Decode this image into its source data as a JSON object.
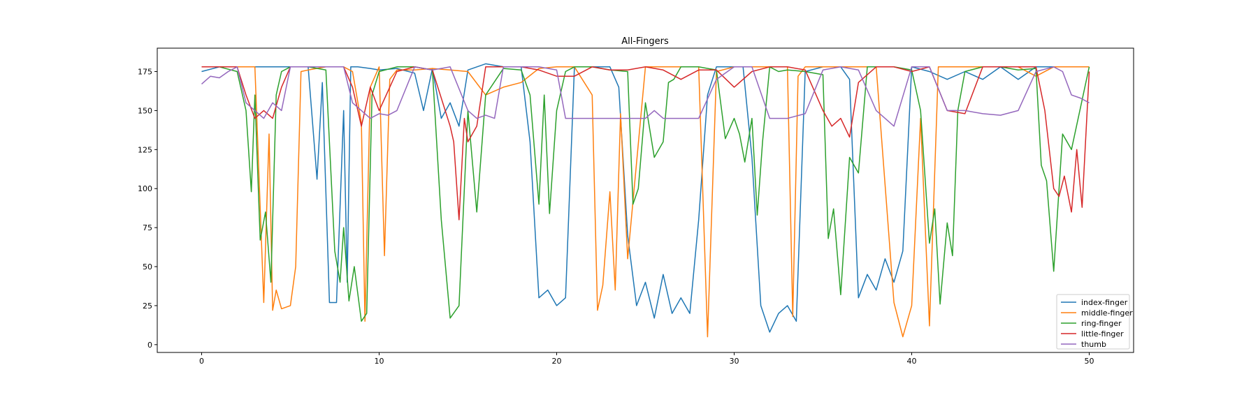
{
  "chart_data": {
    "type": "line",
    "title": "All-Fingers",
    "xlabel": "",
    "ylabel": "",
    "xlim": [
      -2.5,
      52.5
    ],
    "ylim": [
      -5,
      190
    ],
    "x_ticks": [
      0,
      10,
      20,
      30,
      40,
      50
    ],
    "y_ticks": [
      0,
      25,
      50,
      75,
      100,
      125,
      150,
      175
    ],
    "grid": false,
    "legend_position": "lower-right",
    "series": [
      {
        "name": "index-finger",
        "color": "#1f77b4",
        "x": [
          0,
          1,
          2,
          3,
          4,
          5,
          6,
          6.5,
          6.8,
          7.2,
          7.6,
          8,
          8.2,
          8.4,
          8.8,
          9.5,
          10,
          11,
          12,
          12.5,
          13,
          13.5,
          14,
          14.5,
          15,
          16,
          17,
          18,
          18.5,
          19,
          19.5,
          20,
          20.5,
          21,
          22,
          23,
          23.5,
          24,
          24.5,
          25,
          25.5,
          26,
          26.5,
          27,
          27.5,
          28,
          28.5,
          29,
          30,
          30.5,
          31,
          31.5,
          32,
          32.5,
          33,
          33.5,
          34,
          35,
          36,
          36.5,
          37,
          37.5,
          38,
          38.5,
          39,
          39.5,
          40,
          41,
          42,
          43,
          44,
          45,
          46,
          47,
          48,
          49,
          50
        ],
        "y": [
          175,
          178,
          178,
          178,
          178,
          178,
          178,
          106,
          168,
          27,
          27,
          150,
          40,
          178,
          178,
          177,
          176,
          177,
          174,
          150,
          177,
          145,
          155,
          140,
          176,
          180,
          178,
          178,
          130,
          30,
          35,
          25,
          30,
          178,
          178,
          178,
          165,
          70,
          25,
          40,
          17,
          45,
          20,
          30,
          20,
          80,
          160,
          178,
          178,
          178,
          120,
          25,
          8,
          20,
          25,
          15,
          175,
          178,
          178,
          170,
          30,
          45,
          35,
          55,
          40,
          60,
          178,
          175,
          170,
          175,
          170,
          178,
          170,
          178,
          178,
          178,
          178
        ]
      },
      {
        "name": "middle-finger",
        "color": "#ff7f0e",
        "x": [
          0,
          1,
          2,
          3,
          3.5,
          3.8,
          4,
          4.2,
          4.5,
          5,
          5.3,
          5.6,
          6,
          7,
          8,
          8.5,
          9,
          9.2,
          9.5,
          10,
          10.3,
          10.6,
          11,
          12,
          13,
          14,
          15,
          16,
          17,
          18,
          19,
          20,
          21,
          22,
          22.3,
          22.6,
          23,
          23.3,
          23.6,
          24,
          25,
          26,
          27,
          28,
          28.5,
          29,
          30,
          31,
          32,
          33,
          33.3,
          33.6,
          34,
          35,
          36,
          37,
          38,
          39,
          39.5,
          40,
          40.5,
          41,
          41.5,
          42,
          43,
          44,
          45,
          46,
          47,
          48,
          49,
          50
        ],
        "y": [
          178,
          178,
          178,
          178,
          27,
          135,
          22,
          35,
          23,
          25,
          50,
          175,
          176,
          178,
          178,
          175,
          142,
          15,
          165,
          178,
          57,
          170,
          176,
          176,
          177,
          176,
          175,
          160,
          165,
          168,
          177,
          178,
          178,
          160,
          22,
          38,
          98,
          35,
          148,
          55,
          178,
          178,
          178,
          178,
          5,
          175,
          178,
          178,
          178,
          178,
          18,
          172,
          178,
          178,
          178,
          178,
          178,
          27,
          5,
          25,
          145,
          12,
          178,
          178,
          178,
          178,
          178,
          178,
          172,
          178,
          178,
          178
        ]
      },
      {
        "name": "ring-finger",
        "color": "#2ca02c",
        "x": [
          0,
          1,
          2,
          2.5,
          2.8,
          3,
          3.3,
          3.6,
          3.9,
          4.2,
          4.5,
          5,
          6,
          7,
          7.5,
          7.8,
          8,
          8.3,
          8.6,
          9,
          9.3,
          9.6,
          10,
          11,
          12,
          13,
          13.5,
          14,
          14.5,
          15,
          15.5,
          16,
          17,
          18,
          18.5,
          19,
          19.3,
          19.6,
          20,
          20.5,
          21,
          22,
          23,
          24,
          24.3,
          24.6,
          25,
          25.5,
          26,
          26.3,
          26.6,
          27,
          28,
          29,
          29.5,
          30,
          30.3,
          30.6,
          31,
          31.3,
          31.6,
          32,
          32.5,
          33,
          34,
          35,
          35.3,
          35.6,
          36,
          36.5,
          37,
          37.5,
          38,
          39,
          40,
          40.5,
          41,
          41.3,
          41.6,
          42,
          42.3,
          42.6,
          43,
          44,
          45,
          46,
          47,
          47.3,
          47.6,
          48,
          48.5,
          49,
          50
        ],
        "y": [
          178,
          178,
          175,
          150,
          98,
          160,
          67,
          85,
          40,
          160,
          175,
          178,
          178,
          176,
          60,
          40,
          75,
          28,
          50,
          15,
          20,
          160,
          175,
          178,
          178,
          176,
          80,
          17,
          25,
          150,
          85,
          160,
          177,
          176,
          160,
          90,
          160,
          84,
          150,
          175,
          178,
          178,
          176,
          175,
          90,
          100,
          155,
          120,
          130,
          168,
          170,
          178,
          178,
          176,
          132,
          145,
          135,
          117,
          145,
          83,
          130,
          178,
          175,
          176,
          175,
          173,
          68,
          87,
          32,
          120,
          110,
          178,
          178,
          178,
          176,
          150,
          65,
          87,
          26,
          78,
          57,
          150,
          175,
          178,
          178,
          176,
          177,
          115,
          105,
          47,
          135,
          125,
          178
        ]
      },
      {
        "name": "little-finger",
        "color": "#d62728",
        "x": [
          0,
          1,
          2,
          2.5,
          3,
          3.5,
          4,
          4.5,
          5,
          6,
          7,
          8,
          8.5,
          9,
          9.5,
          10,
          11,
          12,
          13,
          14,
          14.2,
          14.5,
          14.8,
          15,
          15.5,
          16,
          17,
          18,
          19,
          20,
          21,
          22,
          23,
          24,
          25,
          26,
          27,
          28,
          29,
          30,
          31,
          32,
          33,
          34,
          35,
          35.5,
          36,
          36.5,
          37,
          38,
          39,
          40,
          41,
          42,
          43,
          44,
          45,
          46,
          47,
          47.5,
          48,
          48.3,
          48.6,
          49,
          49.3,
          49.6,
          50
        ],
        "y": [
          178,
          178,
          178,
          160,
          145,
          150,
          145,
          165,
          178,
          178,
          178,
          178,
          165,
          140,
          165,
          150,
          175,
          178,
          176,
          140,
          130,
          80,
          145,
          130,
          140,
          178,
          178,
          178,
          176,
          172,
          172,
          178,
          176,
          176,
          178,
          176,
          170,
          176,
          176,
          165,
          175,
          178,
          178,
          176,
          150,
          140,
          145,
          133,
          168,
          178,
          178,
          175,
          178,
          150,
          148,
          178,
          178,
          178,
          178,
          150,
          100,
          95,
          108,
          85,
          125,
          88,
          175
        ]
      },
      {
        "name": "thumb",
        "color": "#9467bd",
        "x": [
          0,
          0.5,
          1,
          1.5,
          2,
          2.5,
          3,
          3.5,
          4,
          4.5,
          5,
          6,
          7,
          8,
          8.5,
          9,
          9.5,
          10,
          10.5,
          11,
          12,
          13,
          14,
          15,
          15.5,
          16,
          16.5,
          17,
          18,
          19,
          20,
          20.5,
          21,
          22,
          23,
          24,
          25,
          25.5,
          26,
          27,
          28,
          29,
          30,
          31,
          32,
          33,
          34,
          35,
          36,
          37,
          38,
          38.5,
          39,
          40,
          41,
          42,
          43,
          44,
          45,
          46,
          47,
          48,
          48.5,
          49,
          49.5,
          50
        ],
        "y": [
          167,
          172,
          171,
          175,
          178,
          155,
          150,
          145,
          155,
          150,
          178,
          178,
          178,
          178,
          155,
          150,
          145,
          148,
          147,
          150,
          178,
          176,
          178,
          150,
          145,
          147,
          145,
          178,
          178,
          178,
          176,
          145,
          145,
          145,
          145,
          145,
          145,
          150,
          145,
          145,
          145,
          170,
          178,
          178,
          145,
          145,
          148,
          176,
          178,
          176,
          150,
          145,
          140,
          178,
          178,
          150,
          150,
          148,
          147,
          150,
          175,
          178,
          175,
          160,
          158,
          155
        ]
      }
    ]
  }
}
